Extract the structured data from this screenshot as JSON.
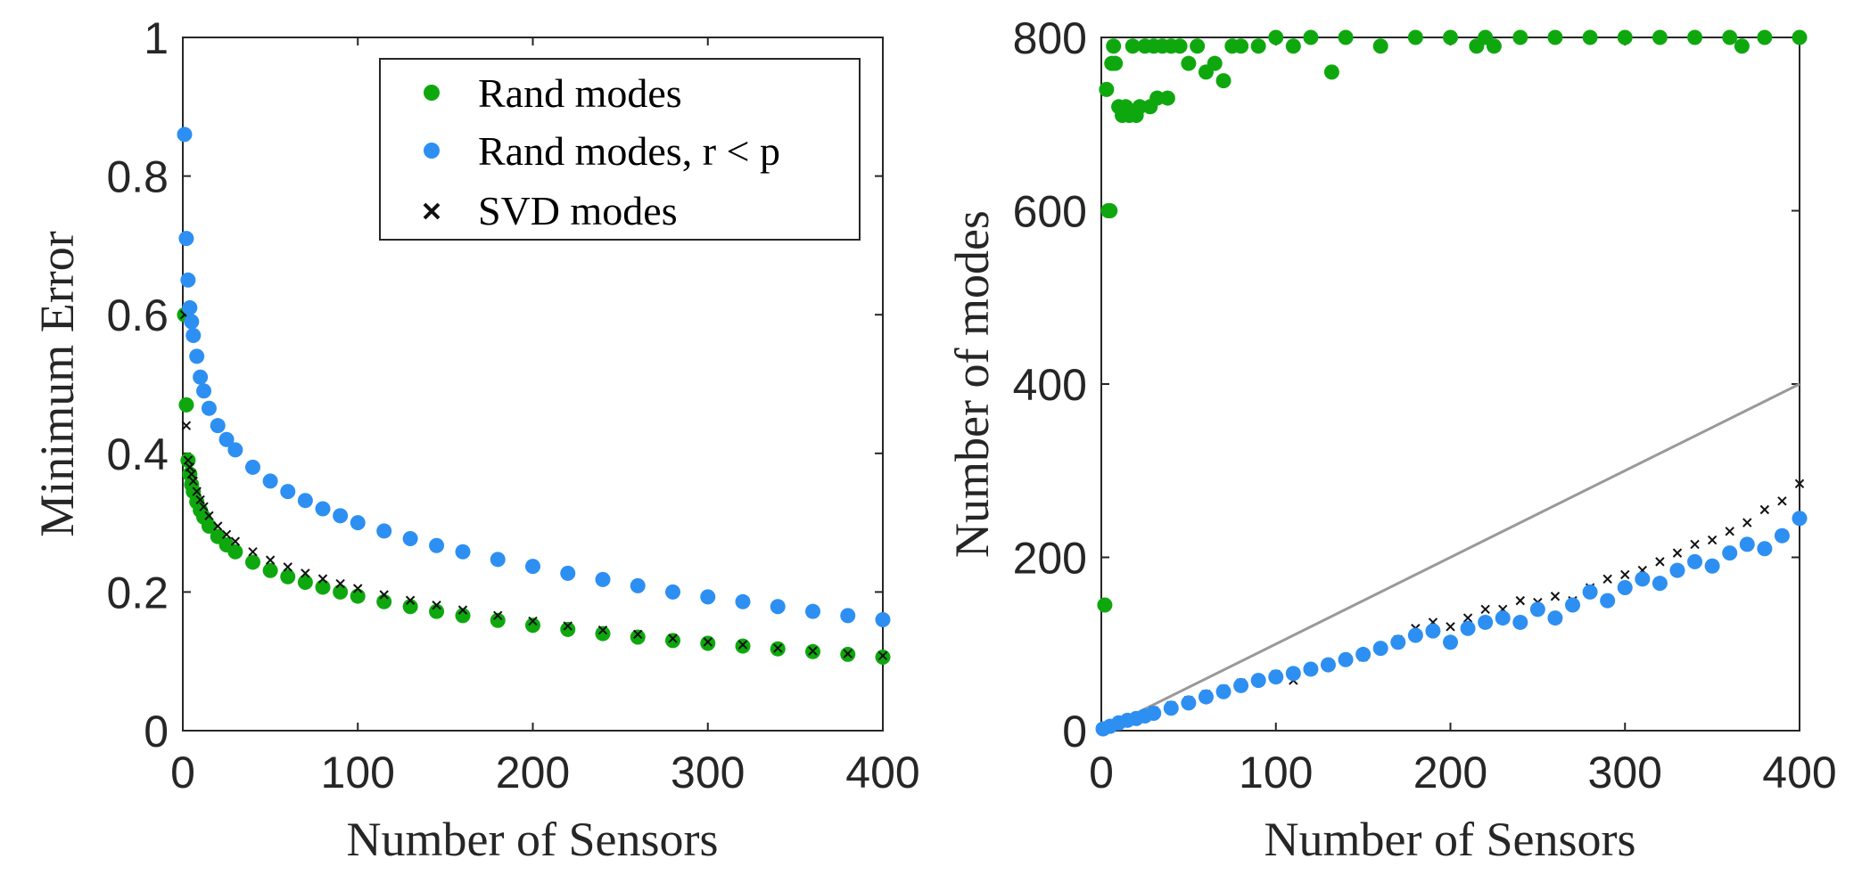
{
  "colors": {
    "rand": "#0ea80e",
    "rand_rp": "#2d8ff2",
    "svd": "#111111",
    "reference_line": "#999999",
    "axis": "#262626"
  },
  "chart_data": [
    {
      "type": "scatter",
      "id": "left",
      "title": "",
      "xlabel": "Number of Sensors",
      "ylabel": "Minimum Error",
      "xlim": [
        0,
        400
      ],
      "ylim": [
        0,
        1
      ],
      "xticks": [
        0,
        100,
        200,
        300,
        400
      ],
      "xtick_labels": [
        "0",
        "100",
        "200",
        "300",
        "400"
      ],
      "yticks": [
        0,
        0.2,
        0.4,
        0.6,
        0.8,
        1
      ],
      "ytick_labels": [
        "0",
        "0.2",
        "0.4",
        "0.6",
        "0.8",
        "1"
      ],
      "legend_position": "top-right",
      "legend": [
        {
          "label": "Rand modes",
          "marker": "dot",
          "series": "rand"
        },
        {
          "label": "Rand modes, r < p",
          "marker": "dot",
          "series": "rand_rp"
        },
        {
          "label": "SVD modes",
          "marker": "x",
          "series": "svd"
        }
      ],
      "series": [
        {
          "name": "Rand modes",
          "marker": "dot",
          "x": [
            1,
            2,
            3,
            4,
            5,
            6,
            8,
            10,
            12,
            15,
            20,
            25,
            30,
            40,
            50,
            60,
            70,
            80,
            90,
            100,
            115,
            130,
            145,
            160,
            180,
            200,
            220,
            240,
            260,
            280,
            300,
            320,
            340,
            360,
            380,
            400
          ],
          "y": [
            0.6,
            0.47,
            0.39,
            0.37,
            0.355,
            0.345,
            0.33,
            0.318,
            0.308,
            0.295,
            0.28,
            0.268,
            0.258,
            0.243,
            0.231,
            0.222,
            0.214,
            0.207,
            0.2,
            0.194,
            0.186,
            0.179,
            0.172,
            0.166,
            0.159,
            0.152,
            0.146,
            0.14,
            0.135,
            0.13,
            0.126,
            0.122,
            0.118,
            0.114,
            0.11,
            0.106
          ]
        },
        {
          "name": "Rand modes, r < p",
          "marker": "dot",
          "x": [
            1,
            2,
            3,
            4,
            5,
            6,
            8,
            10,
            12,
            15,
            20,
            25,
            30,
            40,
            50,
            60,
            70,
            80,
            90,
            100,
            115,
            130,
            145,
            160,
            180,
            200,
            220,
            240,
            260,
            280,
            300,
            320,
            340,
            360,
            380,
            400
          ],
          "y": [
            0.86,
            0.71,
            0.65,
            0.61,
            0.59,
            0.57,
            0.54,
            0.51,
            0.49,
            0.465,
            0.44,
            0.42,
            0.405,
            0.38,
            0.36,
            0.345,
            0.332,
            0.32,
            0.31,
            0.3,
            0.288,
            0.277,
            0.267,
            0.258,
            0.247,
            0.237,
            0.227,
            0.218,
            0.209,
            0.2,
            0.193,
            0.186,
            0.179,
            0.172,
            0.166,
            0.16
          ]
        },
        {
          "name": "SVD modes",
          "marker": "x",
          "x": [
            1,
            2,
            3,
            4,
            5,
            6,
            8,
            10,
            12,
            15,
            20,
            25,
            30,
            40,
            50,
            60,
            70,
            80,
            90,
            100,
            115,
            130,
            145,
            160,
            180,
            200,
            220,
            240,
            260,
            280,
            300,
            320,
            340,
            360,
            380,
            400
          ],
          "y": [
            0.6,
            0.44,
            0.39,
            0.38,
            0.37,
            0.36,
            0.345,
            0.333,
            0.323,
            0.31,
            0.295,
            0.283,
            0.273,
            0.258,
            0.246,
            0.236,
            0.227,
            0.219,
            0.212,
            0.205,
            0.196,
            0.188,
            0.181,
            0.174,
            0.166,
            0.158,
            0.151,
            0.145,
            0.139,
            0.133,
            0.128,
            0.124,
            0.119,
            0.115,
            0.111,
            0.108
          ]
        }
      ]
    },
    {
      "type": "scatter",
      "id": "right",
      "title": "",
      "xlabel": "Number of Sensors",
      "ylabel": "Number of modes",
      "xlim": [
        0,
        400
      ],
      "ylim": [
        0,
        800
      ],
      "xticks": [
        0,
        100,
        200,
        300,
        400
      ],
      "xtick_labels": [
        "0",
        "100",
        "200",
        "300",
        "400"
      ],
      "yticks": [
        0,
        200,
        400,
        600,
        800
      ],
      "ytick_labels": [
        "0",
        "200",
        "400",
        "600",
        "800"
      ],
      "reference_line": {
        "x": [
          0,
          400
        ],
        "y": [
          0,
          400
        ]
      },
      "series": [
        {
          "name": "Rand modes",
          "marker": "dot",
          "x": [
            2,
            3,
            4,
            5,
            6,
            7,
            8,
            10,
            12,
            14,
            16,
            18,
            20,
            22,
            25,
            28,
            30,
            32,
            35,
            38,
            40,
            45,
            50,
            55,
            60,
            65,
            70,
            75,
            80,
            90,
            100,
            110,
            120,
            132,
            140,
            160,
            180,
            200,
            215,
            220,
            225,
            240,
            260,
            280,
            300,
            320,
            340,
            360,
            367,
            380,
            400
          ],
          "y": [
            145,
            740,
            600,
            600,
            770,
            790,
            770,
            720,
            710,
            720,
            710,
            790,
            710,
            720,
            790,
            720,
            790,
            730,
            790,
            730,
            790,
            790,
            770,
            790,
            760,
            770,
            750,
            790,
            790,
            790,
            800,
            790,
            800,
            760,
            800,
            790,
            800,
            800,
            790,
            800,
            790,
            800,
            800,
            800,
            800,
            800,
            800,
            800,
            790,
            800,
            800
          ]
        },
        {
          "name": "Rand modes, r < p",
          "marker": "dot",
          "x": [
            1,
            5,
            10,
            15,
            20,
            25,
            30,
            40,
            50,
            60,
            70,
            80,
            90,
            100,
            110,
            120,
            130,
            140,
            150,
            160,
            170,
            180,
            190,
            200,
            210,
            220,
            230,
            240,
            250,
            260,
            270,
            280,
            290,
            300,
            310,
            320,
            330,
            340,
            350,
            360,
            370,
            380,
            390,
            400
          ],
          "y": [
            2,
            5,
            9,
            12,
            14,
            17,
            20,
            26,
            32,
            39,
            45,
            52,
            58,
            62,
            66,
            71,
            76,
            82,
            88,
            95,
            102,
            110,
            115,
            102,
            118,
            125,
            130,
            125,
            140,
            130,
            145,
            160,
            150,
            165,
            175,
            170,
            185,
            195,
            190,
            205,
            215,
            210,
            225,
            245
          ]
        },
        {
          "name": "SVD modes",
          "marker": "x",
          "x": [
            1,
            5,
            10,
            15,
            20,
            25,
            30,
            40,
            50,
            60,
            70,
            80,
            90,
            100,
            110,
            120,
            130,
            140,
            150,
            160,
            170,
            180,
            190,
            200,
            210,
            220,
            230,
            240,
            250,
            260,
            270,
            280,
            290,
            300,
            310,
            320,
            330,
            340,
            350,
            360,
            370,
            380,
            390,
            400
          ],
          "y": [
            3,
            7,
            11,
            14,
            16,
            19,
            23,
            29,
            35,
            42,
            48,
            55,
            60,
            65,
            58,
            70,
            74,
            80,
            85,
            95,
            105,
            118,
            125,
            120,
            130,
            140,
            140,
            150,
            148,
            155,
            150,
            165,
            175,
            180,
            185,
            195,
            205,
            215,
            220,
            230,
            240,
            255,
            265,
            285
          ]
        }
      ]
    }
  ]
}
